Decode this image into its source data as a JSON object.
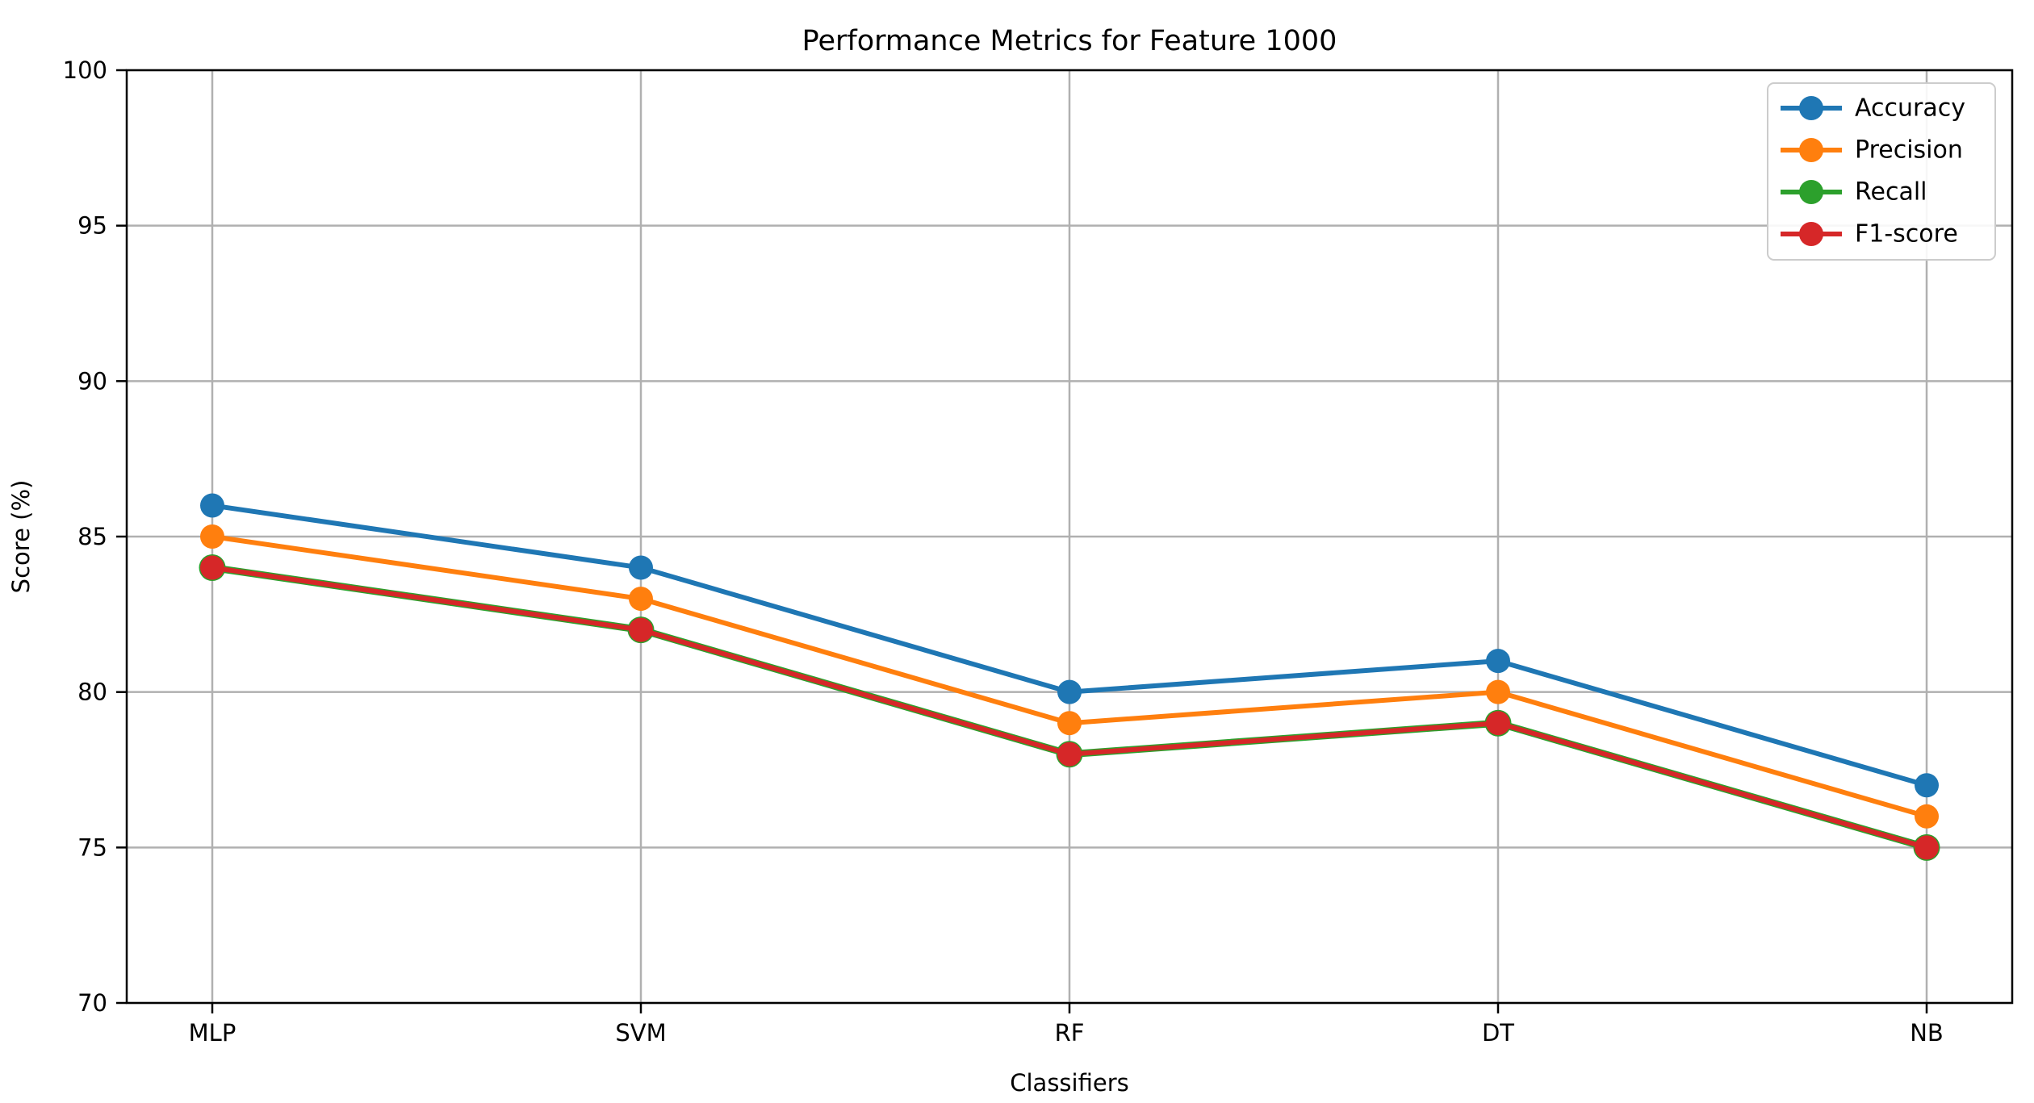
{
  "chart_data": {
    "type": "line",
    "title": "Performance Metrics for Feature 1000",
    "xlabel": "Classifiers",
    "ylabel": "Score (%)",
    "categories": [
      "MLP",
      "SVM",
      "RF",
      "DT",
      "NB"
    ],
    "ylim": [
      70,
      100
    ],
    "yticks": [
      70,
      75,
      80,
      85,
      90,
      95,
      100
    ],
    "grid": true,
    "legend_position": "upper right",
    "series": [
      {
        "name": "Accuracy",
        "color": "#1f77b4",
        "values": [
          86,
          84,
          80,
          81,
          77
        ]
      },
      {
        "name": "Precision",
        "color": "#ff7f0e",
        "values": [
          85,
          83,
          79,
          80,
          76
        ]
      },
      {
        "name": "Recall",
        "color": "#2ca02c",
        "values": [
          84,
          82,
          78,
          79,
          75
        ]
      },
      {
        "name": "F1-score",
        "color": "#d62728",
        "values": [
          84,
          82,
          78,
          79,
          75
        ]
      }
    ]
  },
  "colors": {
    "background": "#ffffff",
    "grid": "#b0b0b0",
    "spine": "#000000",
    "text": "#000000",
    "legend_border": "#cccccc",
    "legend_fill": "#ffffff"
  }
}
